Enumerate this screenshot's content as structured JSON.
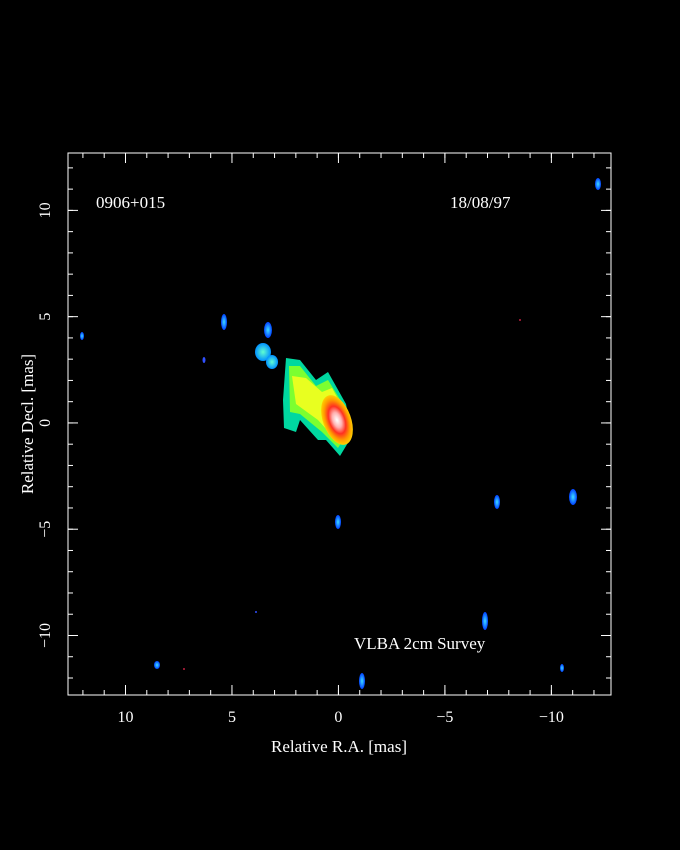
{
  "chart_data": {
    "type": "image",
    "source": "0906+015",
    "date": "18/08/97",
    "survey": "VLBA 2cm Survey",
    "xlabel": "Relative R.A. [mas]",
    "ylabel": "Relative Decl. [mas]",
    "xlim": [
      12.7,
      -12.8
    ],
    "ylim": [
      -12.8,
      12.7
    ],
    "xticks": [
      10,
      5,
      0,
      {
        "value": -5,
        "label": "−5"
      },
      {
        "value": -10,
        "label": "−10"
      }
    ],
    "yticks": [
      {
        "value": -10,
        "label": "−10"
      },
      {
        "value": -5,
        "label": "−5"
      },
      0,
      5,
      10
    ]
  }
}
